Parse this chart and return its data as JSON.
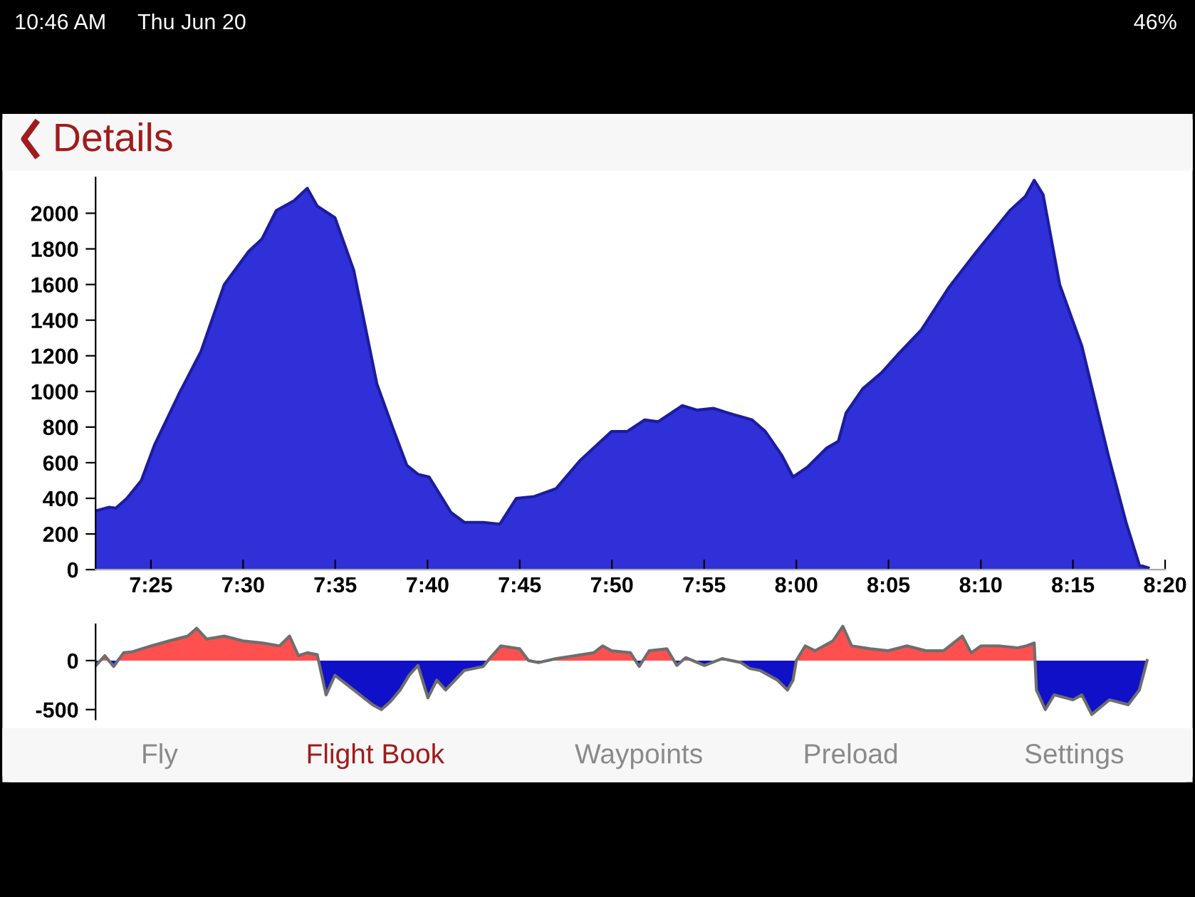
{
  "chart_data": [
    {
      "type": "other",
      "annotations": [
        "10:46 AM",
        "Thu Jun 20",
        "46%",
        "Details",
        "Fly",
        "Flight Book",
        "Waypoints",
        "Preload",
        "Settings"
      ],
      "colors": [
        "#ffffff",
        "#ffffff",
        "#ffffff",
        "#a01c1c",
        "#8a8a8a",
        "#a01c1c",
        "#8a8a8a",
        "#8a8a8a",
        "#8a8a8a"
      ]
    },
    {
      "type": "area",
      "x": [
        7.367,
        7.379,
        7.385,
        7.395,
        7.408,
        7.42,
        7.442,
        7.462,
        7.483,
        7.505,
        7.517,
        7.53,
        7.546,
        7.558,
        7.567,
        7.583,
        7.6,
        7.621,
        7.635,
        7.648,
        7.658,
        7.668,
        7.688,
        7.7,
        7.717,
        7.732,
        7.747,
        7.763,
        7.783,
        7.805,
        7.833,
        7.847,
        7.863,
        7.875,
        7.897,
        7.91,
        7.925,
        7.943,
        7.96,
        7.972,
        7.987,
        7.997,
        8.01,
        8.027,
        8.038,
        8.045,
        8.06,
        8.077,
        8.093,
        8.113,
        8.138,
        8.163,
        8.193,
        8.207,
        8.215,
        8.223,
        8.238,
        8.258,
        8.282,
        8.298,
        8.31,
        8.318
      ],
      "series": [
        {
          "color": "#1c1ca0",
          "values": [
            330,
            350,
            345,
            400,
            500,
            700,
            985,
            1225,
            1600,
            1785,
            1855,
            2015,
            2070,
            2140,
            2040,
            1975,
            1680,
            1040,
            800,
            585,
            535,
            520,
            320,
            265,
            265,
            255,
            400,
            410,
            455,
            615,
            775,
            775,
            840,
            830,
            920,
            895,
            905,
            870,
            840,
            775,
            640,
            520,
            575,
            680,
            720,
            880,
            1015,
            1105,
            1215,
            1345,
            1585,
            1785,
            2015,
            2095,
            2185,
            2105,
            1600,
            1255,
            640,
            265,
            25,
            10
          ]
        }
      ],
      "colors": [
        "#3030d8"
      ],
      "xlim": [
        7.3667,
        8.3333
      ],
      "ylim": [
        0,
        2200
      ],
      "xticks": [
        {
          "value": 7.4167,
          "label": "7:25"
        },
        {
          "value": 7.5,
          "label": "7:30"
        },
        {
          "value": 7.5833,
          "label": "7:35"
        },
        {
          "value": 7.6667,
          "label": "7:40"
        },
        {
          "value": 7.75,
          "label": "7:45"
        },
        {
          "value": 7.8333,
          "label": "7:50"
        },
        {
          "value": 7.9167,
          "label": "7:55"
        },
        {
          "value": 8.0,
          "label": "8:00"
        },
        {
          "value": 8.0833,
          "label": "8:05"
        },
        {
          "value": 8.1667,
          "label": "8:10"
        },
        {
          "value": 8.25,
          "label": "8:15"
        },
        {
          "value": 8.3333,
          "label": "8:20"
        }
      ],
      "yticks": [
        0,
        200,
        400,
        600,
        800,
        1000,
        1200,
        1400,
        1600,
        1800,
        2000
      ]
    },
    {
      "type": "area",
      "x": [
        7.367,
        7.375,
        7.383,
        7.392,
        7.4,
        7.417,
        7.433,
        7.45,
        7.458,
        7.467,
        7.483,
        7.5,
        7.517,
        7.533,
        7.542,
        7.55,
        7.558,
        7.567,
        7.575,
        7.583,
        7.6,
        7.617,
        7.625,
        7.633,
        7.642,
        7.65,
        7.658,
        7.667,
        7.675,
        7.683,
        7.7,
        7.717,
        7.725,
        7.733,
        7.75,
        7.758,
        7.767,
        7.783,
        7.8,
        7.817,
        7.825,
        7.833,
        7.85,
        7.858,
        7.867,
        7.883,
        7.892,
        7.9,
        7.917,
        7.933,
        7.95,
        7.958,
        7.967,
        7.983,
        7.992,
        7.997,
        8.0,
        8.008,
        8.017,
        8.033,
        8.042,
        8.05,
        8.067,
        8.083,
        8.1,
        8.117,
        8.133,
        8.15,
        8.158,
        8.167,
        8.183,
        8.2,
        8.208,
        8.215,
        8.217,
        8.225,
        8.233,
        8.25,
        8.258,
        8.267,
        8.283,
        8.3,
        8.31,
        8.317
      ],
      "series": [
        {
          "color": "#6e6e6e",
          "values": [
            -50,
            50,
            -60,
            80,
            90,
            150,
            200,
            250,
            330,
            220,
            250,
            200,
            180,
            150,
            250,
            50,
            80,
            60,
            -350,
            -150,
            -300,
            -450,
            -500,
            -420,
            -300,
            -150,
            -50,
            -380,
            -200,
            -300,
            -100,
            -60,
            50,
            150,
            120,
            0,
            -20,
            20,
            50,
            80,
            150,
            100,
            80,
            -60,
            100,
            120,
            -50,
            30,
            -50,
            20,
            -20,
            -80,
            -100,
            -200,
            -300,
            -200,
            0,
            150,
            100,
            200,
            350,
            150,
            120,
            100,
            150,
            100,
            100,
            250,
            80,
            150,
            150,
            130,
            150,
            180,
            -300,
            -500,
            -350,
            -400,
            -350,
            -550,
            -400,
            -450,
            -300,
            0
          ]
        }
      ],
      "colors": [
        "#ff5050",
        "#1010c8"
      ],
      "xlim": [
        7.3667,
        8.3333
      ],
      "ylim": [
        -600,
        370
      ],
      "yticks": [
        -500,
        0
      ],
      "tick_labels": "y"
    }
  ]
}
